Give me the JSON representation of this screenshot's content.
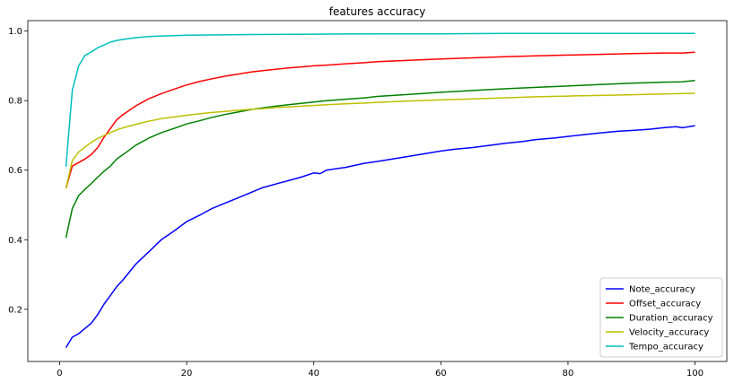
{
  "chart_data": {
    "type": "line",
    "title": "features accuracy",
    "xlabel": "",
    "ylabel": "",
    "xlim": [
      -5,
      105
    ],
    "ylim": [
      0.05,
      1.03
    ],
    "xticks": [
      0,
      20,
      40,
      60,
      80,
      100
    ],
    "yticks": [
      0.2,
      0.4,
      0.6,
      0.8,
      1.0
    ],
    "xtick_labels": [
      "0",
      "20",
      "40",
      "60",
      "80",
      "100"
    ],
    "ytick_labels": [
      "0.2",
      "0.4",
      "0.6",
      "0.8",
      "1.0"
    ],
    "grid": false,
    "legend_position": "lower-right",
    "series": [
      {
        "name": "Note_accuracy",
        "color": "#0000ff",
        "points": [
          [
            1,
            0.09
          ],
          [
            2,
            0.12
          ],
          [
            3,
            0.13
          ],
          [
            4,
            0.145
          ],
          [
            5,
            0.16
          ],
          [
            6,
            0.185
          ],
          [
            7,
            0.215
          ],
          [
            8,
            0.24
          ],
          [
            9,
            0.265
          ],
          [
            10,
            0.285
          ],
          [
            12,
            0.33
          ],
          [
            14,
            0.365
          ],
          [
            16,
            0.4
          ],
          [
            18,
            0.425
          ],
          [
            20,
            0.452
          ],
          [
            22,
            0.47
          ],
          [
            24,
            0.49
          ],
          [
            26,
            0.505
          ],
          [
            28,
            0.52
          ],
          [
            30,
            0.535
          ],
          [
            32,
            0.55
          ],
          [
            34,
            0.56
          ],
          [
            36,
            0.57
          ],
          [
            38,
            0.58
          ],
          [
            40,
            0.592
          ],
          [
            41,
            0.59
          ],
          [
            42,
            0.6
          ],
          [
            45,
            0.608
          ],
          [
            48,
            0.62
          ],
          [
            50,
            0.625
          ],
          [
            55,
            0.64
          ],
          [
            60,
            0.655
          ],
          [
            62,
            0.66
          ],
          [
            65,
            0.665
          ],
          [
            68,
            0.672
          ],
          [
            70,
            0.677
          ],
          [
            73,
            0.683
          ],
          [
            75,
            0.688
          ],
          [
            78,
            0.693
          ],
          [
            80,
            0.697
          ],
          [
            83,
            0.703
          ],
          [
            85,
            0.707
          ],
          [
            88,
            0.712
          ],
          [
            90,
            0.714
          ],
          [
            93,
            0.718
          ],
          [
            95,
            0.722
          ],
          [
            97,
            0.725
          ],
          [
            98,
            0.722
          ],
          [
            100,
            0.728
          ]
        ]
      },
      {
        "name": "Offset_accuracy",
        "color": "#ff0000",
        "points": [
          [
            1,
            0.548
          ],
          [
            2,
            0.612
          ],
          [
            3,
            0.622
          ],
          [
            4,
            0.632
          ],
          [
            5,
            0.645
          ],
          [
            6,
            0.665
          ],
          [
            7,
            0.695
          ],
          [
            8,
            0.72
          ],
          [
            9,
            0.745
          ],
          [
            10,
            0.76
          ],
          [
            12,
            0.785
          ],
          [
            14,
            0.805
          ],
          [
            16,
            0.82
          ],
          [
            18,
            0.833
          ],
          [
            20,
            0.845
          ],
          [
            22,
            0.855
          ],
          [
            24,
            0.863
          ],
          [
            26,
            0.87
          ],
          [
            28,
            0.876
          ],
          [
            30,
            0.882
          ],
          [
            32,
            0.886
          ],
          [
            34,
            0.89
          ],
          [
            36,
            0.894
          ],
          [
            38,
            0.897
          ],
          [
            40,
            0.9
          ],
          [
            42,
            0.902
          ],
          [
            45,
            0.906
          ],
          [
            48,
            0.909
          ],
          [
            50,
            0.912
          ],
          [
            55,
            0.916
          ],
          [
            60,
            0.92
          ],
          [
            65,
            0.923
          ],
          [
            68,
            0.925
          ],
          [
            70,
            0.926
          ],
          [
            75,
            0.929
          ],
          [
            80,
            0.931
          ],
          [
            85,
            0.933
          ],
          [
            90,
            0.935
          ],
          [
            95,
            0.937
          ],
          [
            98,
            0.937
          ],
          [
            100,
            0.939
          ]
        ]
      },
      {
        "name": "Duration_accuracy",
        "color": "#008000",
        "points": [
          [
            1,
            0.405
          ],
          [
            2,
            0.49
          ],
          [
            3,
            0.527
          ],
          [
            4,
            0.545
          ],
          [
            5,
            0.562
          ],
          [
            6,
            0.58
          ],
          [
            7,
            0.597
          ],
          [
            8,
            0.612
          ],
          [
            9,
            0.632
          ],
          [
            10,
            0.645
          ],
          [
            12,
            0.672
          ],
          [
            14,
            0.692
          ],
          [
            16,
            0.708
          ],
          [
            18,
            0.72
          ],
          [
            20,
            0.733
          ],
          [
            22,
            0.742
          ],
          [
            24,
            0.752
          ],
          [
            26,
            0.76
          ],
          [
            28,
            0.767
          ],
          [
            30,
            0.774
          ],
          [
            32,
            0.779
          ],
          [
            34,
            0.784
          ],
          [
            36,
            0.788
          ],
          [
            38,
            0.792
          ],
          [
            40,
            0.796
          ],
          [
            42,
            0.8
          ],
          [
            45,
            0.804
          ],
          [
            48,
            0.808
          ],
          [
            50,
            0.812
          ],
          [
            55,
            0.818
          ],
          [
            60,
            0.824
          ],
          [
            65,
            0.829
          ],
          [
            70,
            0.834
          ],
          [
            75,
            0.838
          ],
          [
            80,
            0.842
          ],
          [
            85,
            0.846
          ],
          [
            90,
            0.85
          ],
          [
            95,
            0.853
          ],
          [
            98,
            0.854
          ],
          [
            100,
            0.858
          ]
        ]
      },
      {
        "name": "Velocity_accuracy",
        "color": "#bfbf00",
        "points": [
          [
            1,
            0.548
          ],
          [
            2,
            0.628
          ],
          [
            3,
            0.652
          ],
          [
            4,
            0.667
          ],
          [
            5,
            0.68
          ],
          [
            6,
            0.691
          ],
          [
            7,
            0.7
          ],
          [
            8,
            0.708
          ],
          [
            9,
            0.716
          ],
          [
            10,
            0.722
          ],
          [
            12,
            0.732
          ],
          [
            14,
            0.741
          ],
          [
            16,
            0.748
          ],
          [
            18,
            0.753
          ],
          [
            20,
            0.758
          ],
          [
            22,
            0.762
          ],
          [
            24,
            0.766
          ],
          [
            26,
            0.769
          ],
          [
            28,
            0.772
          ],
          [
            30,
            0.775
          ],
          [
            32,
            0.777
          ],
          [
            34,
            0.78
          ],
          [
            36,
            0.782
          ],
          [
            38,
            0.784
          ],
          [
            40,
            0.786
          ],
          [
            42,
            0.788
          ],
          [
            45,
            0.791
          ],
          [
            48,
            0.793
          ],
          [
            50,
            0.795
          ],
          [
            55,
            0.799
          ],
          [
            60,
            0.802
          ],
          [
            65,
            0.805
          ],
          [
            70,
            0.808
          ],
          [
            75,
            0.811
          ],
          [
            80,
            0.813
          ],
          [
            85,
            0.815
          ],
          [
            90,
            0.817
          ],
          [
            95,
            0.819
          ],
          [
            100,
            0.821
          ]
        ]
      },
      {
        "name": "Tempo_accuracy",
        "color": "#00bfbf",
        "points": [
          [
            1,
            0.61
          ],
          [
            2,
            0.83
          ],
          [
            3,
            0.9
          ],
          [
            4,
            0.93
          ],
          [
            5,
            0.94
          ],
          [
            6,
            0.952
          ],
          [
            7,
            0.96
          ],
          [
            8,
            0.968
          ],
          [
            9,
            0.973
          ],
          [
            10,
            0.976
          ],
          [
            12,
            0.981
          ],
          [
            14,
            0.984
          ],
          [
            16,
            0.986
          ],
          [
            18,
            0.987
          ],
          [
            20,
            0.988
          ],
          [
            25,
            0.989
          ],
          [
            30,
            0.99
          ],
          [
            40,
            0.991
          ],
          [
            50,
            0.992
          ],
          [
            60,
            0.992
          ],
          [
            70,
            0.993
          ],
          [
            80,
            0.993
          ],
          [
            90,
            0.993
          ],
          [
            100,
            0.993
          ]
        ]
      }
    ]
  }
}
